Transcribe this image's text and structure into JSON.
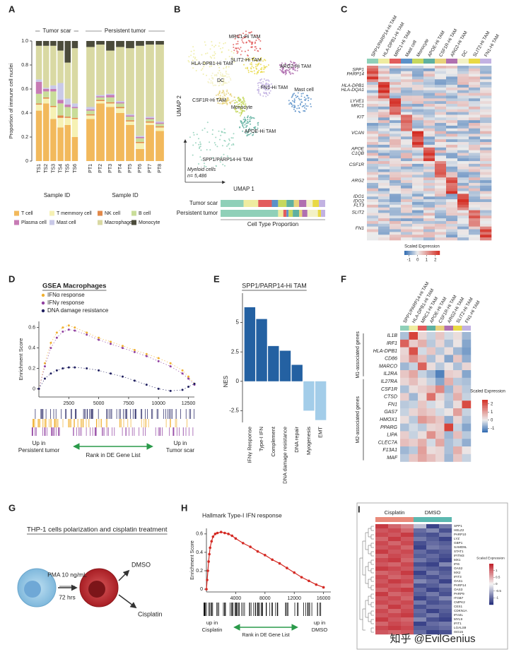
{
  "panel_labels": [
    "A",
    "B",
    "C",
    "D",
    "E",
    "F",
    "G",
    "H",
    "I"
  ],
  "panel_a": {
    "type": "bar",
    "stacked": true,
    "ylabel": "Proportion of immune cell nuclei",
    "xlabel": "Sample ID",
    "groups": [
      {
        "name": "Tumor scar",
        "categories": [
          "TS1",
          "TS2",
          "TS3",
          "TS4",
          "TS5",
          "TS6"
        ]
      },
      {
        "name": "Persistent tumor",
        "categories": [
          "PT1",
          "PT2",
          "PT3",
          "PT4",
          "PT5",
          "PT6",
          "PT7",
          "PT8"
        ]
      }
    ],
    "ylim": [
      0,
      1
    ],
    "yticks": [
      0,
      0.2,
      0.4,
      0.6,
      0.8,
      {
        "value": 1,
        "label": "1.0"
      }
    ],
    "series": [
      {
        "name": "T cell",
        "color": "#f2b95c",
        "values": [
          0.42,
          0.48,
          0.35,
          0.28,
          0.3,
          0.2,
          0.35,
          0.48,
          0.45,
          0.4,
          0.3,
          0.1,
          0.3,
          0.25
        ]
      },
      {
        "name": "T memmory cell",
        "color": "#f6f1b4",
        "values": [
          0.05,
          0.04,
          0.1,
          0.08,
          0.06,
          0.15,
          0.03,
          0.02,
          0.03,
          0.04,
          0.03,
          0.05,
          0.02,
          0.03
        ]
      },
      {
        "name": "NK cell",
        "color": "#e2894a",
        "values": [
          0.01,
          0.01,
          0.01,
          0.02,
          0.01,
          0.01,
          0.01,
          0.01,
          0.01,
          0.01,
          0.01,
          0.01,
          0.01,
          0.01
        ]
      },
      {
        "name": "B cell",
        "color": "#c9dd99",
        "values": [
          0.08,
          0.05,
          0.12,
          0.1,
          0.08,
          0.08,
          0.03,
          0.02,
          0.04,
          0.03,
          0.03,
          0.03,
          0.02,
          0.02
        ]
      },
      {
        "name": "Plasma cell",
        "color": "#c77bb5",
        "values": [
          0.1,
          0.02,
          0.02,
          0.03,
          0.02,
          0.01,
          0.01,
          0.01,
          0.02,
          0.01,
          0.01,
          0.01,
          0.01,
          0.01
        ]
      },
      {
        "name": "Mast cell",
        "color": "#c9c9e8",
        "values": [
          0.02,
          0.01,
          0.03,
          0.14,
          0.05,
          0.03,
          0.02,
          0.01,
          0.01,
          0.01,
          0.01,
          0.01,
          0.01,
          0.01
        ]
      },
      {
        "name": "Macrophage",
        "color": "#d9d9a3",
        "values": [
          0.28,
          0.35,
          0.33,
          0.27,
          0.3,
          0.46,
          0.5,
          0.42,
          0.36,
          0.45,
          0.55,
          0.75,
          0.6,
          0.64
        ]
      },
      {
        "name": "Monocyte",
        "color": "#4b4b3b",
        "values": [
          0.04,
          0.04,
          0.04,
          0.08,
          0.18,
          0.06,
          0.05,
          0.03,
          0.08,
          0.05,
          0.06,
          0.04,
          0.03,
          0.03
        ]
      }
    ]
  },
  "panel_b": {
    "type": "scatter",
    "xlabel": "UMAP 1",
    "ylabel": "UMAP 2",
    "note": "Myeloid cells",
    "count": "n= 5,486",
    "clusters": [
      {
        "name": "SPP1/PARP14-Hi TAM",
        "color": "#8fd0b8"
      },
      {
        "name": "HLA-DPB1-Hi TAM",
        "color": "#efeca0"
      },
      {
        "name": "MRC1-Hi TAM",
        "color": "#e25c5c"
      },
      {
        "name": "Mast cell",
        "color": "#5b91c9"
      },
      {
        "name": "Monocyte",
        "color": "#c6d85e"
      },
      {
        "name": "APOE-Hi TAM",
        "color": "#5fb0a0"
      },
      {
        "name": "CSF1R-Hi TAM",
        "color": "#e8d27a"
      },
      {
        "name": "ARG2-Hi TAM",
        "color": "#b070b0"
      },
      {
        "name": "DC",
        "color": "#f3f1c6"
      },
      {
        "name": "SLIT2-Hi TAM",
        "color": "#e9d944"
      },
      {
        "name": "FN1-Hi TAM",
        "color": "#c2b2e2"
      }
    ],
    "proportion_title": "Cell Type Proportion",
    "proportions": [
      {
        "name": "Tumor scar",
        "values": [
          0.22,
          0.14,
          0.13,
          0.06,
          0.08,
          0.07,
          0.05,
          0.07,
          0.06,
          0.06,
          0.06
        ]
      },
      {
        "name": "Persistent tumor",
        "values": [
          0.55,
          0.05,
          0.03,
          0.02,
          0.04,
          0.06,
          0.03,
          0.05,
          0.1,
          0.03,
          0.04
        ]
      }
    ]
  },
  "panel_c": {
    "type": "heatmap",
    "columns": [
      {
        "name": "SPP1/PARP14-Hi TAM",
        "color": "#8fd0b8"
      },
      {
        "name": "HLA-DPB1-Hi TAM",
        "color": "#efeca0"
      },
      {
        "name": "MRC1-Hi TAM",
        "color": "#e25c5c"
      },
      {
        "name": "Mast cell",
        "color": "#5b91c9"
      },
      {
        "name": "Monocyte",
        "color": "#c6d85e"
      },
      {
        "name": "APOE-Hi TAM",
        "color": "#5fb0a0"
      },
      {
        "name": "CSF1R-Hi TAM",
        "color": "#e8d27a"
      },
      {
        "name": "ARG2-Hi TAM",
        "color": "#b070b0"
      },
      {
        "name": "DC",
        "color": "#f3f1c6"
      },
      {
        "name": "SLIT2-Hi TAM",
        "color": "#e9d944"
      },
      {
        "name": "FN1-Hi TAM",
        "color": "#c2b2e2"
      }
    ],
    "genes": [
      "SPP1",
      "PARP14",
      "HLA-DPB1",
      "HLA-DQA1",
      "LYVE1",
      "MRC1",
      "KIT",
      "VCAN",
      "APOE",
      "C1QB",
      "CSF1R",
      "ARG2",
      "IDO1",
      "IDO2",
      "FLT3",
      "SLIT2",
      "FN1"
    ],
    "colorbar_label": "Scaled Expression",
    "clim": [
      -1.5,
      2.5
    ],
    "cticks": [
      -1,
      0,
      1,
      2
    ]
  },
  "panel_d": {
    "type": "line",
    "title": "GSEA Macrophages",
    "ylabel": "Enrichment Score",
    "x": [
      0,
      500,
      1000,
      1500,
      2000,
      2500,
      3000,
      4000,
      5000,
      6000,
      7000,
      8000,
      9000,
      10000,
      11000,
      12000,
      12500,
      13000
    ],
    "xlim": [
      0,
      13000
    ],
    "xticks": [
      2500,
      5000,
      7500,
      10000,
      12500
    ],
    "ylim": [
      -0.08,
      0.66
    ],
    "yticks": [
      0,
      0.2,
      0.4,
      0.6
    ],
    "series": [
      {
        "name": "IFNα response",
        "color": "#f0b030",
        "values": [
          0,
          0.25,
          0.45,
          0.55,
          0.6,
          0.62,
          0.6,
          0.55,
          0.5,
          0.46,
          0.42,
          0.38,
          0.34,
          0.3,
          0.25,
          0.18,
          0.12,
          0.05
        ]
      },
      {
        "name": "IFNγ response",
        "color": "#9040a0",
        "values": [
          0,
          0.22,
          0.4,
          0.5,
          0.56,
          0.58,
          0.57,
          0.53,
          0.48,
          0.44,
          0.4,
          0.36,
          0.32,
          0.27,
          0.22,
          0.15,
          0.1,
          0.04
        ]
      },
      {
        "name": "DNA damage resistance",
        "color": "#202060",
        "values": [
          0,
          0.1,
          0.15,
          0.18,
          0.2,
          0.21,
          0.21,
          0.2,
          0.18,
          0.15,
          0.12,
          0.08,
          0.04,
          0.0,
          -0.02,
          -0.01,
          0.02,
          0.05
        ]
      }
    ],
    "left_label": [
      "Up in",
      "Persistent tumor"
    ],
    "center_label": "Rank in DE Gene List",
    "right_label": [
      "Up in",
      "Tumor scar"
    ]
  },
  "panel_e": {
    "type": "bar",
    "title": "SPP1/PARP14-Hi TAM",
    "ylabel": "NES",
    "categories": [
      "IFNγ Response",
      "Type-I IFN",
      "Complement",
      "DNA damage resistance",
      "DNA repair",
      "Myogenesis",
      "EMT"
    ],
    "values": [
      6.3,
      5.3,
      3.0,
      2.6,
      1.4,
      -2.5,
      -3.3
    ],
    "colors": [
      "#2461a2",
      "#2461a2",
      "#2461a2",
      "#2461a2",
      "#2461a2",
      "#a3cde9",
      "#a3cde9"
    ],
    "ylim": [
      -3.5,
      7.5
    ],
    "yticks": [
      -2.5,
      0,
      2.5,
      5
    ]
  },
  "panel_f": {
    "type": "heatmap",
    "columns": [
      {
        "name": "SPP1/PARP14-Hi TAM",
        "color": "#8fd0b8"
      },
      {
        "name": "HLA-DPB1-Hi TAM",
        "color": "#efeca0"
      },
      {
        "name": "MRC1-Hi TAM",
        "color": "#e25c5c"
      },
      {
        "name": "APOE-Hi TAM",
        "color": "#5fb0a0"
      },
      {
        "name": "CSF1R-Hi TAM",
        "color": "#e8d27a"
      },
      {
        "name": "ARG2-Hi TAM",
        "color": "#b070b0"
      },
      {
        "name": "SLIT2-Hi TAM",
        "color": "#e9d944"
      },
      {
        "name": "FN1-Hi TAM",
        "color": "#c2b2e2"
      }
    ],
    "groups": [
      {
        "name": "M1-associated genes",
        "genes": [
          "IL1B",
          "IRF1",
          "HLA-DPB1",
          "CD86",
          "MARCO",
          "IL2RA"
        ]
      },
      {
        "name": "M2-associated genes",
        "genes": [
          "IL27RA",
          "CSF1R",
          "CTSD",
          "FN1",
          "GAS7",
          "HMOX1",
          "PPARG",
          "LIPA",
          "CLEC7A",
          "F13A1",
          "MAF"
        ]
      }
    ],
    "values": [
      [
        -0.5,
        2.2,
        0.3,
        -0.3,
        0.5,
        -0.2,
        0.2,
        -0.6
      ],
      [
        1.8,
        0.4,
        0.8,
        -0.4,
        0.3,
        -0.5,
        0.1,
        -0.8
      ],
      [
        0.3,
        2.0,
        -0.2,
        0.5,
        -0.4,
        0.2,
        -0.6,
        -0.9
      ],
      [
        0.4,
        1.2,
        0.6,
        -0.5,
        0.2,
        -0.8,
        0.5,
        -0.7
      ],
      [
        -0.6,
        -0.3,
        1.8,
        0.2,
        -0.4,
        0.1,
        -0.5,
        0.3
      ],
      [
        0.5,
        0.9,
        -0.3,
        -0.6,
        -1.2,
        0.4,
        0.3,
        -0.8
      ],
      [
        0.3,
        0.6,
        0.2,
        -0.3,
        -0.8,
        0.8,
        -0.4,
        -0.5
      ],
      [
        -0.5,
        0.2,
        0.4,
        0.6,
        1.3,
        -0.6,
        0.5,
        -0.4
      ],
      [
        0.4,
        -0.6,
        0.2,
        1.6,
        0.3,
        -0.4,
        0.8,
        -0.3
      ],
      [
        -0.4,
        -0.3,
        0.5,
        -0.2,
        0.1,
        -0.5,
        0.2,
        2.1
      ],
      [
        -0.3,
        0.3,
        0.6,
        0.4,
        -0.2,
        0.1,
        1.0,
        -0.3
      ],
      [
        0.2,
        -0.4,
        1.1,
        0.8,
        0.5,
        -0.7,
        0.3,
        -0.5
      ],
      [
        -0.5,
        -0.2,
        -0.4,
        0.3,
        0.4,
        2.2,
        -0.3,
        -0.8
      ],
      [
        0.4,
        -0.3,
        0.2,
        1.2,
        0.5,
        -0.6,
        0.6,
        -0.4
      ],
      [
        0.6,
        0.4,
        0.8,
        -0.2,
        0.9,
        -0.5,
        -0.3,
        -0.7
      ],
      [
        -0.6,
        -0.4,
        1.0,
        0.2,
        0.3,
        -0.5,
        0.8,
        0.1
      ],
      [
        -0.4,
        0.5,
        0.9,
        0.6,
        0.3,
        -0.6,
        0.5,
        -0.3
      ]
    ],
    "colorbar_label": "Scaled Expression",
    "clim": [
      -1.5,
      2.5
    ],
    "cticks": [
      -1,
      0,
      1,
      2
    ]
  },
  "panel_g": {
    "title": "THP-1 cells polarization and cisplatin treatment",
    "treatment": "PMA 10 ng/mL",
    "duration": "72 hrs",
    "arm_1": "DMSO",
    "arm_2": "Cisplatin"
  },
  "panel_h": {
    "type": "line",
    "title": "Hallmark Type-I IFN response",
    "ylabel": "Enrichment Score",
    "color": "#d42a24",
    "x": [
      0,
      100,
      200,
      300,
      400,
      500,
      700,
      900,
      1200,
      1500,
      2000,
      2500,
      3000,
      3500,
      4000,
      5000,
      6000,
      7000,
      8000,
      9000,
      10000,
      11000,
      12000,
      13000,
      14000,
      15000,
      16000
    ],
    "values": [
      0,
      0.1,
      0.2,
      0.3,
      0.38,
      0.45,
      0.52,
      0.57,
      0.6,
      0.61,
      0.62,
      0.61,
      0.6,
      0.58,
      0.55,
      0.5,
      0.46,
      0.41,
      0.37,
      0.32,
      0.28,
      0.23,
      0.18,
      0.13,
      0.09,
      0.05,
      0.02
    ],
    "xlim": [
      0,
      17000
    ],
    "xticks": [
      4000,
      8000,
      12000,
      16000
    ],
    "ylim": [
      -0.03,
      0.66
    ],
    "yticks": [
      0,
      0.2,
      0.4,
      0.6
    ],
    "left_label": [
      "up in",
      "Cisplatin"
    ],
    "center_label": "Rank in DE Gene List",
    "right_label": [
      "up in",
      "DMSO"
    ]
  },
  "panel_i": {
    "type": "heatmap",
    "groups": [
      {
        "name": "Cisplatin",
        "color": "#e98b7b",
        "size": 3
      },
      {
        "name": "DMSO",
        "color": "#5cb8b0",
        "size": 3
      }
    ],
    "genes": [
      "SPP1",
      "HELZ2",
      "PARP10",
      "LYZ",
      "GBP1",
      "SAMD9L",
      "STAT1",
      "IFITM3",
      "MX1",
      "IFI6",
      "OAS2",
      "MX2",
      "IFIT3",
      "OAS1",
      "PARP14",
      "OAS3",
      "PARP9",
      "ITGB7",
      "CMPK2",
      "CES1",
      "CDKN1A",
      "IFI44L",
      "MYL9",
      "IFIT1",
      "LGALS9",
      "ISG15"
    ],
    "values": [
      [
        1.3,
        1.0,
        0.8,
        -0.4,
        -1.3,
        -0.9
      ],
      [
        1.1,
        1.2,
        1.0,
        -1.0,
        -0.8,
        -1.2
      ],
      [
        1.2,
        1.1,
        1.3,
        -1.1,
        -1.2,
        -0.9
      ],
      [
        1.0,
        1.3,
        1.1,
        -0.9,
        -1.1,
        -1.3
      ],
      [
        1.2,
        1.0,
        1.2,
        -1.2,
        -1.0,
        -1.1
      ],
      [
        1.1,
        1.2,
        1.0,
        -1.3,
        -0.9,
        -1.0
      ],
      [
        1.3,
        1.1,
        1.2,
        -1.0,
        -1.2,
        -1.1
      ],
      [
        1.0,
        1.2,
        1.1,
        -1.1,
        -1.0,
        -1.2
      ],
      [
        1.2,
        1.3,
        1.0,
        -0.9,
        -1.1,
        -1.3
      ],
      [
        1.1,
        1.0,
        1.2,
        -1.2,
        -1.3,
        -0.8
      ],
      [
        1.3,
        1.2,
        1.1,
        -1.0,
        -1.1,
        -1.2
      ],
      [
        1.0,
        1.1,
        1.3,
        -1.3,
        -0.9,
        -1.1
      ],
      [
        1.2,
        1.0,
        1.1,
        -1.1,
        -1.2,
        -1.0
      ],
      [
        1.1,
        1.3,
        1.2,
        -0.8,
        -1.0,
        -1.3
      ],
      [
        1.2,
        1.1,
        1.0,
        -1.2,
        -1.1,
        -0.9
      ],
      [
        1.0,
        1.2,
        1.3,
        -1.0,
        -1.3,
        -1.1
      ],
      [
        1.3,
        1.0,
        1.1,
        -1.1,
        -0.9,
        -1.2
      ],
      [
        1.1,
        1.2,
        1.0,
        -1.3,
        -1.1,
        -0.8
      ],
      [
        1.2,
        1.1,
        1.2,
        -0.9,
        -1.2,
        -1.1
      ],
      [
        1.0,
        1.3,
        1.1,
        -1.2,
        -1.0,
        -1.0
      ],
      [
        1.2,
        1.0,
        1.2,
        -1.0,
        -1.3,
        -1.1
      ],
      [
        1.1,
        1.2,
        1.3,
        -1.1,
        -0.9,
        -1.2
      ],
      [
        1.3,
        1.1,
        1.0,
        -0.8,
        -1.2,
        -1.3
      ],
      [
        1.0,
        1.2,
        1.1,
        -1.3,
        -1.0,
        -0.9
      ],
      [
        1.2,
        1.3,
        1.2,
        -1.1,
        -1.1,
        -1.0
      ],
      [
        1.1,
        1.0,
        1.1,
        -1.0,
        -1.3,
        -1.2
      ]
    ],
    "colorbar_label": "Scaled Expression",
    "clim": [
      -1.5,
      1.5
    ],
    "cticks": [
      -1,
      -0.5,
      0,
      0.5,
      1
    ]
  },
  "watermark": "知乎 @EvilGenius"
}
